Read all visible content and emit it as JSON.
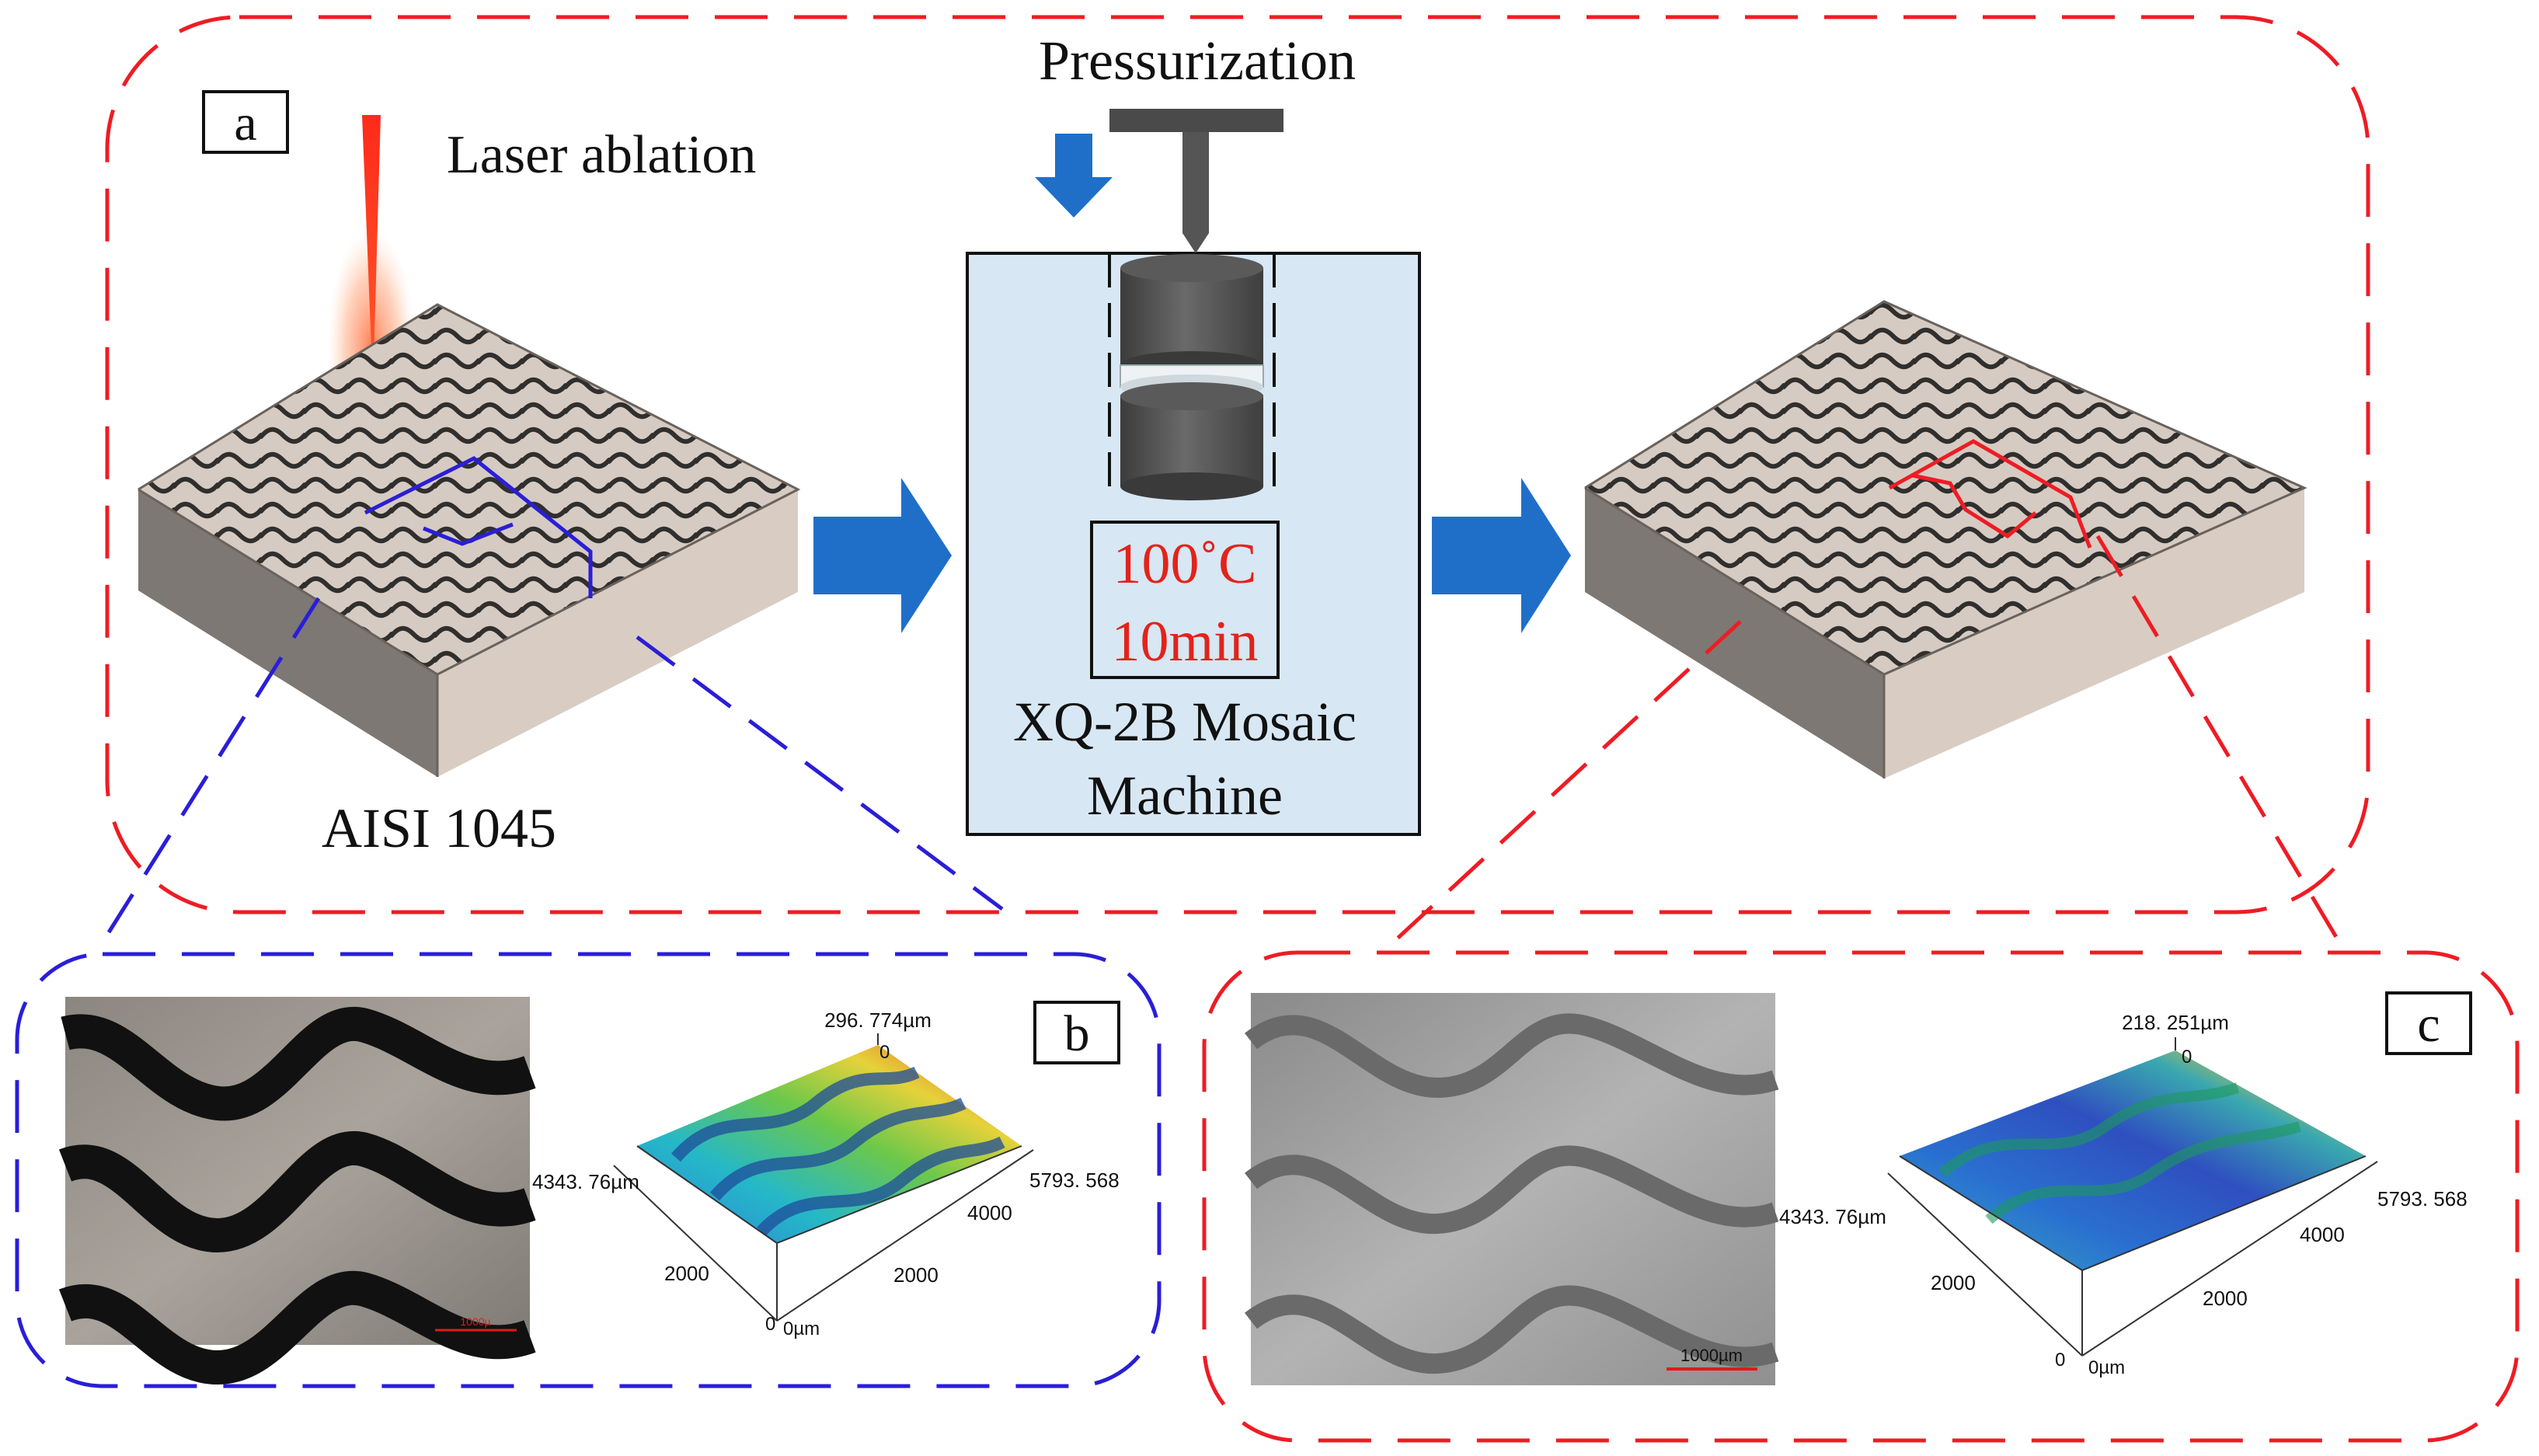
{
  "panels": {
    "a": {
      "label": "a"
    },
    "b": {
      "label": "b"
    },
    "c": {
      "label": "c"
    }
  },
  "labels": {
    "laser": "Laser ablation",
    "pressurization": "Pressurization",
    "material": "AISI 1045",
    "machine_line1": "XQ-2B Mosaic",
    "machine_line2": "Machine",
    "temperature": "100˚C",
    "time": "10min"
  },
  "plot_b": {
    "z_max": "296. 774µm",
    "x_max": "5793. 568",
    "y_max": "4343. 76µm",
    "tick_x": "4000",
    "tick_x2": "2000",
    "tick_y": "2000",
    "z_min": "0",
    "origin": "0µm"
  },
  "plot_c": {
    "z_max": "218. 251µm",
    "x_max": "5793. 568",
    "y_max": "4343. 76µm",
    "tick_x": "4000",
    "tick_x2": "2000",
    "tick_y": "2000",
    "z_min": "0",
    "origin": "0µm"
  },
  "scale_bar": {
    "c": "1000µm",
    "b": "1000µ"
  },
  "colors": {
    "frame_red": "#ee1c24",
    "frame_blue": "#2a1ed8",
    "arrow_blue": "#1f6fc9",
    "machine_bg": "#d7e7f4",
    "accent_red": "#e2231a"
  }
}
